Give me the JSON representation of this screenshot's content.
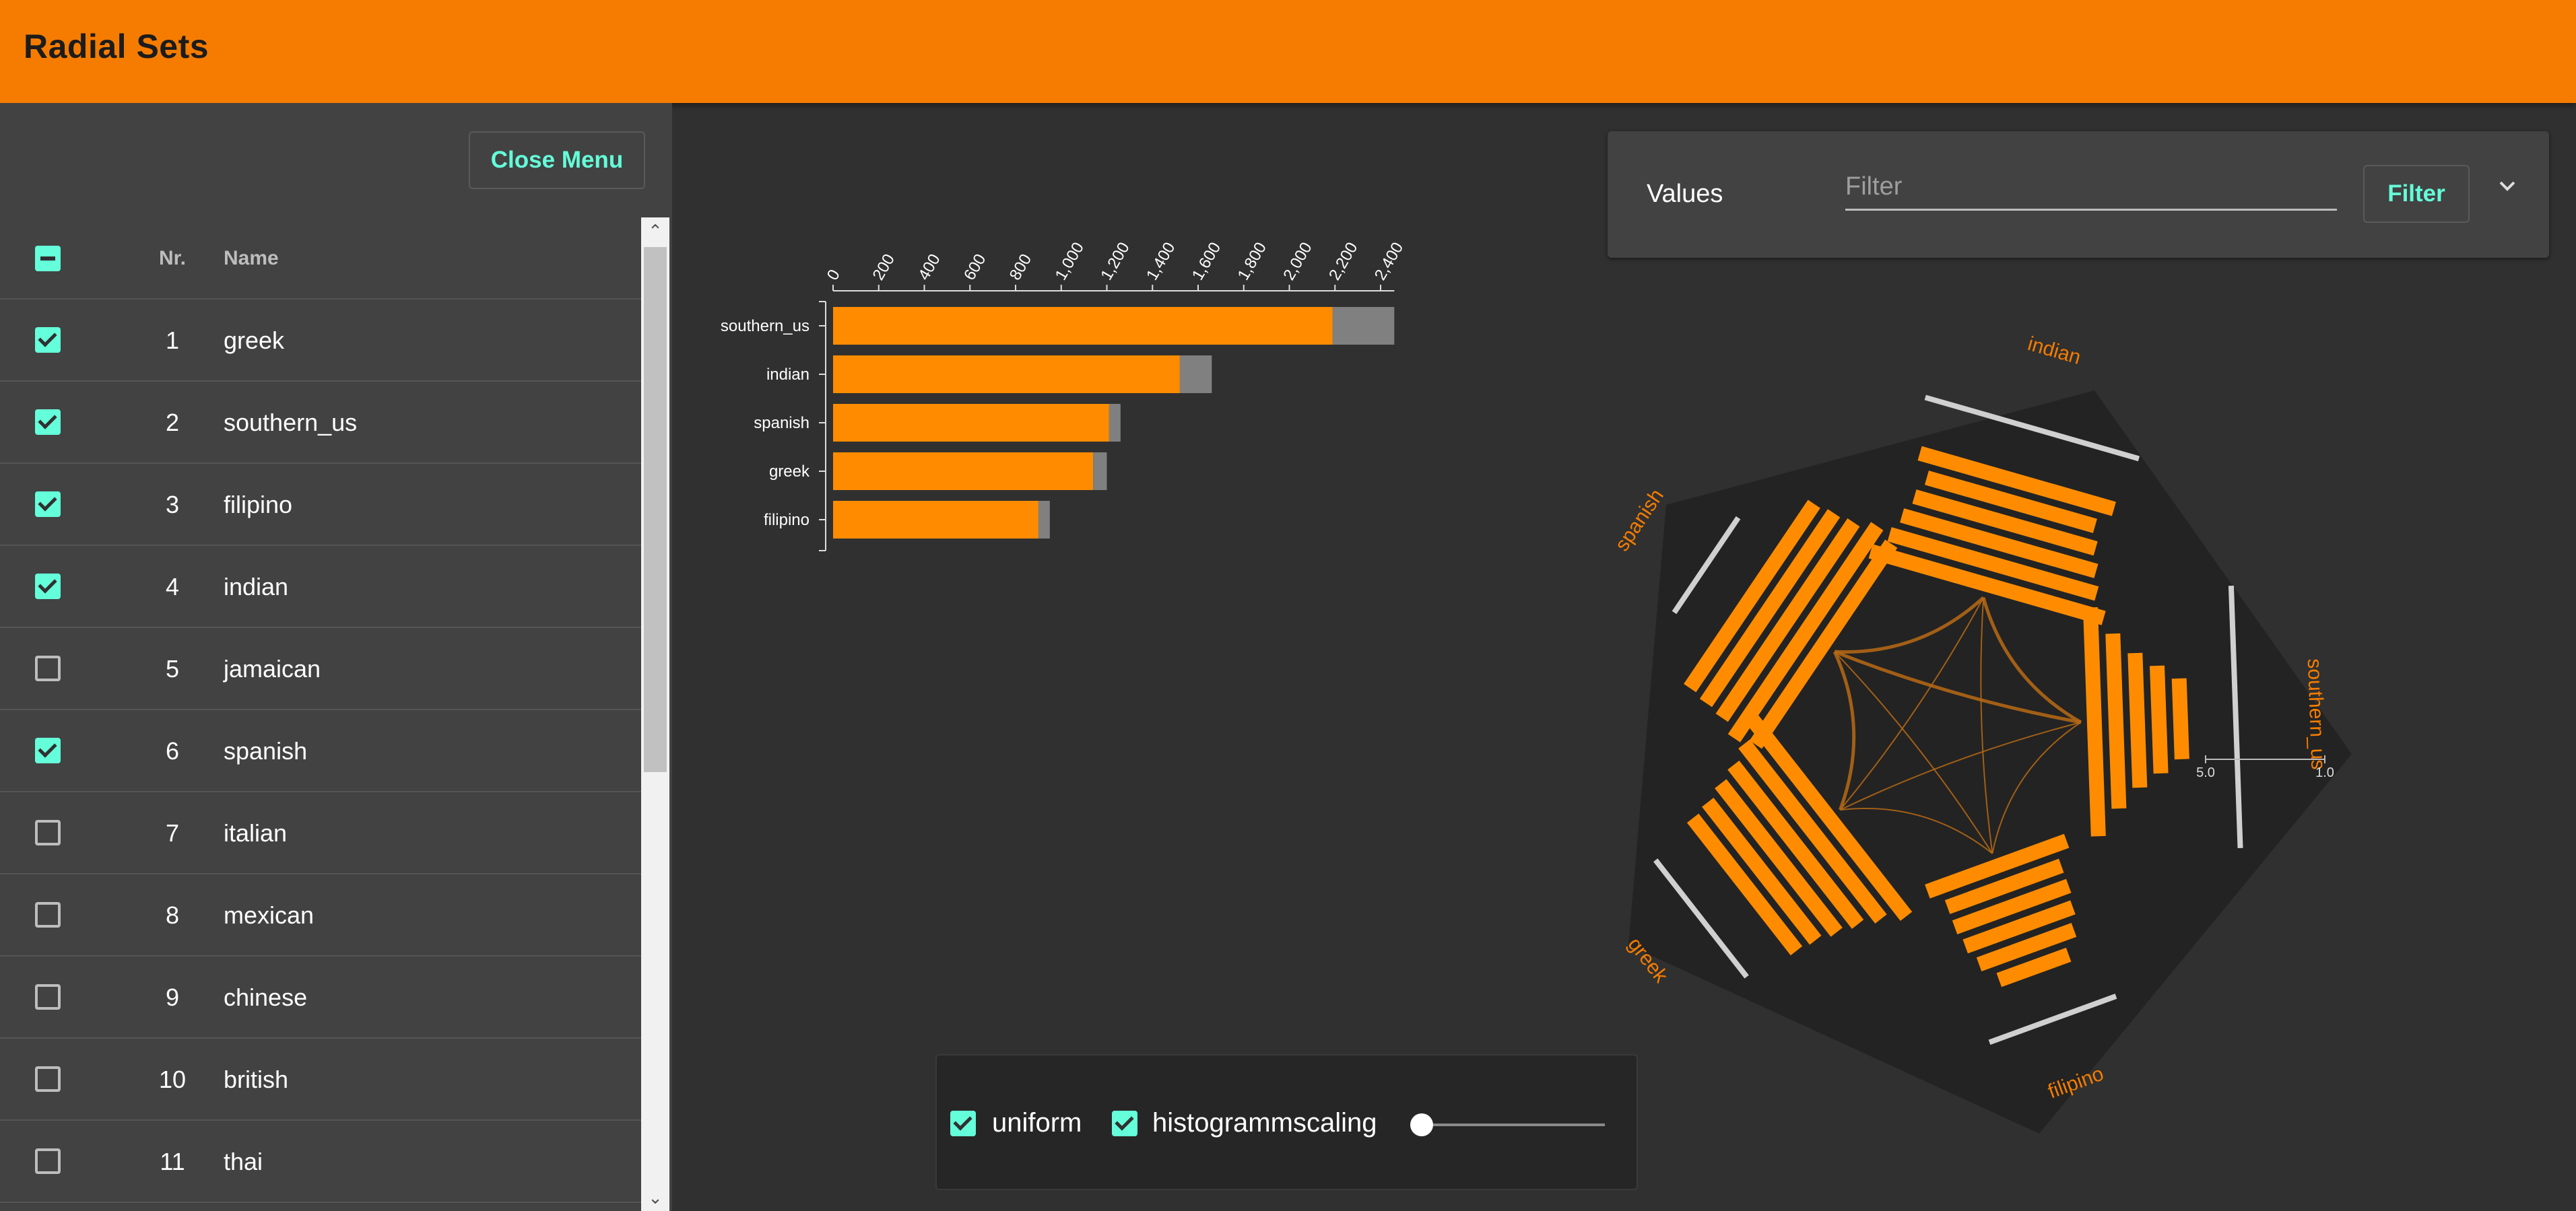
{
  "app": {
    "title": "Radial Sets"
  },
  "sidebar": {
    "close_label": "Close Menu",
    "columns": {
      "nr": "Nr.",
      "name": "Name"
    },
    "rows": [
      {
        "nr": "1",
        "name": "greek",
        "checked": true
      },
      {
        "nr": "2",
        "name": "southern_us",
        "checked": true
      },
      {
        "nr": "3",
        "name": "filipino",
        "checked": true
      },
      {
        "nr": "4",
        "name": "indian",
        "checked": true
      },
      {
        "nr": "5",
        "name": "jamaican",
        "checked": false
      },
      {
        "nr": "6",
        "name": "spanish",
        "checked": true
      },
      {
        "nr": "7",
        "name": "italian",
        "checked": false
      },
      {
        "nr": "8",
        "name": "mexican",
        "checked": false
      },
      {
        "nr": "9",
        "name": "chinese",
        "checked": false
      },
      {
        "nr": "10",
        "name": "british",
        "checked": false
      },
      {
        "nr": "11",
        "name": "thai",
        "checked": false
      }
    ]
  },
  "filter": {
    "label": "Values",
    "placeholder": "Filter",
    "button_label": "Filter"
  },
  "options": {
    "uniform_label": "uniform",
    "uniform_checked": true,
    "histogram_label": "histogrammscaling",
    "histogram_checked": true,
    "slider_value": 0
  },
  "colors": {
    "accent": "#f57c00",
    "bar_primary": "#ff8c00",
    "bar_secondary": "#808080",
    "checkbox": "#64ffda"
  },
  "chart_data": [
    {
      "type": "bar",
      "orientation": "horizontal",
      "categories": [
        "southern_us",
        "indian",
        "spanish",
        "greek",
        "filipino"
      ],
      "series": [
        {
          "values": [
            2190,
            1520,
            1210,
            1140,
            900
          ]
        },
        {
          "values": [
            270,
            140,
            50,
            60,
            50
          ]
        }
      ],
      "stacked": true,
      "x_ticks": [
        "0",
        "200",
        "400",
        "600",
        "800",
        "1,000",
        "1,200",
        "1,400",
        "1,600",
        "1,800",
        "2,000",
        "2,200",
        "2,400"
      ],
      "xlim": [
        0,
        2460
      ]
    },
    {
      "type": "radial-sets",
      "sets": [
        "indian",
        "southern_us",
        "filipino",
        "greek",
        "spanish"
      ],
      "scale_labels": [
        "5.0",
        "1.0"
      ]
    }
  ]
}
